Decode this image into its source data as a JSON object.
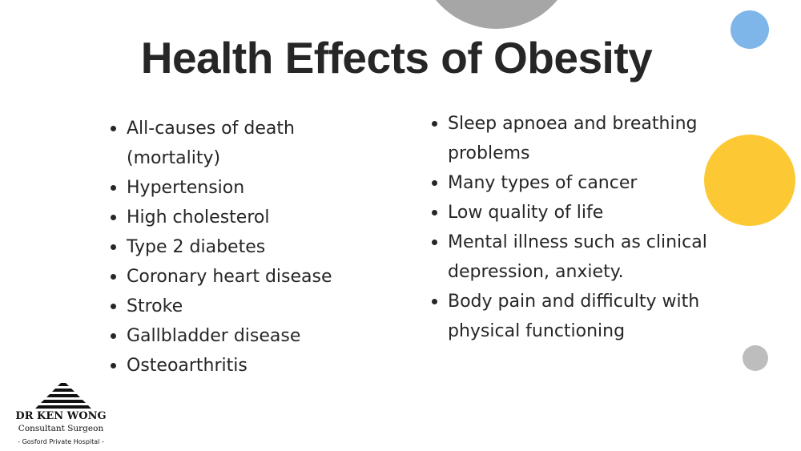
{
  "title": "Health Effects of Obesity",
  "left_list": [
    [
      "All-causes of death",
      "(mortality)"
    ],
    [
      "Hypertension"
    ],
    [
      "High cholesterol"
    ],
    [
      "Type 2 diabetes"
    ],
    [
      "Coronary heart disease"
    ],
    [
      "Stroke"
    ],
    [
      "Gallbladder disease"
    ],
    [
      "Osteoarthritis"
    ]
  ],
  "right_list": [
    [
      "Sleep apnoea and breathing",
      "problems"
    ],
    [
      "Many types of cancer"
    ],
    [
      "Low quality of life"
    ],
    [
      "Mental illness such as clinical",
      "depression, anxiety."
    ],
    [
      "Body pain and difficulty with",
      "physical functioning"
    ]
  ],
  "logo": {
    "name": "DR KEN WONG",
    "role": "Consultant Surgeon",
    "hospital": "- Gosford Private Hospital -"
  }
}
